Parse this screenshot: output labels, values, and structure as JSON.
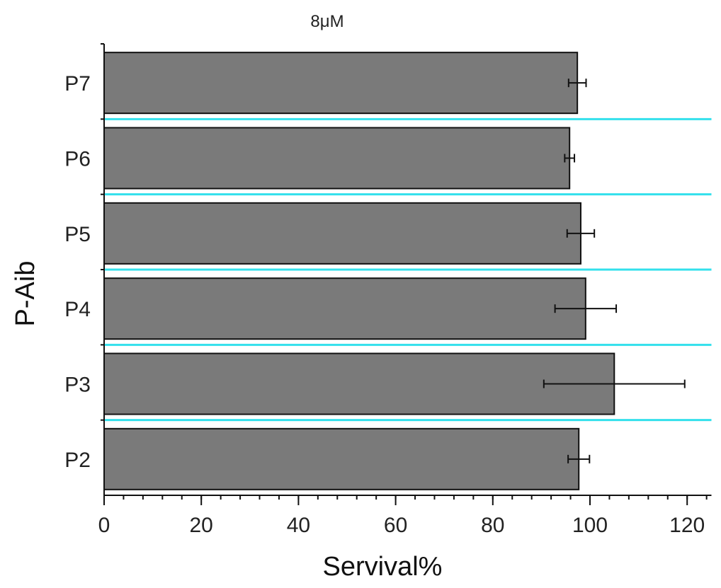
{
  "chart_data": {
    "type": "bar",
    "orientation": "horizontal",
    "title": "8μM",
    "xlabel": "Servival%",
    "ylabel": "P-Aib",
    "categories": [
      "P7",
      "P6",
      "P5",
      "P4",
      "P3",
      "P2"
    ],
    "values": [
      97.4,
      95.8,
      98.1,
      99.1,
      105.0,
      97.7
    ],
    "errors": [
      1.8,
      1.0,
      2.8,
      6.3,
      14.5,
      2.2
    ],
    "xlim": [
      0,
      125
    ],
    "xticks": [
      0,
      20,
      40,
      60,
      80,
      100,
      120
    ],
    "grid": false,
    "bar_color": "#7a7a7a",
    "separator_color": "#33e0ec"
  }
}
